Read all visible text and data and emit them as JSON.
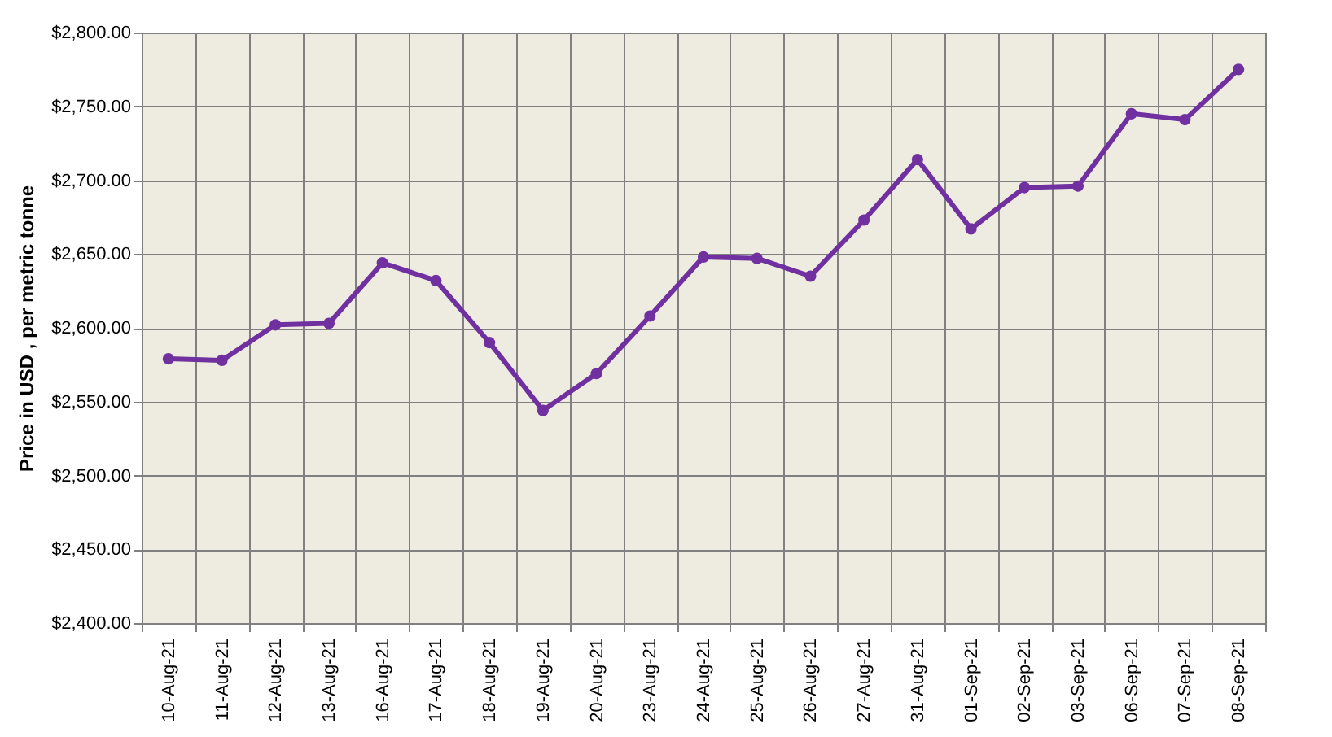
{
  "chart_data": {
    "type": "line",
    "ylabel": "Price in USD , per metric tonne",
    "categories": [
      "10-Aug-21",
      "11-Aug-21",
      "12-Aug-21",
      "13-Aug-21",
      "16-Aug-21",
      "17-Aug-21",
      "18-Aug-21",
      "19-Aug-21",
      "20-Aug-21",
      "23-Aug-21",
      "24-Aug-21",
      "25-Aug-21",
      "26-Aug-21",
      "27-Aug-21",
      "31-Aug-21",
      "01-Sep-21",
      "02-Sep-21",
      "03-Sep-21",
      "06-Sep-21",
      "07-Sep-21",
      "08-Sep-21"
    ],
    "series": [
      {
        "color": "#7030a0",
        "values": [
          2579,
          2578,
          2602,
          2603,
          2644,
          2632,
          2590,
          2544,
          2569,
          2608,
          2648,
          2647,
          2635,
          2673,
          2714,
          2667,
          2695,
          2696,
          2745,
          2741,
          2775
        ]
      }
    ],
    "ylim": [
      2400,
      2800
    ],
    "yticks": [
      {
        "value": 2400,
        "label": "$2,400.00"
      },
      {
        "value": 2450,
        "label": "$2,450.00"
      },
      {
        "value": 2500,
        "label": "$2,500.00"
      },
      {
        "value": 2550,
        "label": "$2,550.00"
      },
      {
        "value": 2600,
        "label": "$2,600.00"
      },
      {
        "value": 2650,
        "label": "$2,650.00"
      },
      {
        "value": 2700,
        "label": "$2,700.00"
      },
      {
        "value": 2750,
        "label": "$2,750.00"
      },
      {
        "value": 2800,
        "label": "$2,800.00"
      }
    ],
    "grid": true,
    "marker": "circle",
    "line_style": "solid"
  }
}
